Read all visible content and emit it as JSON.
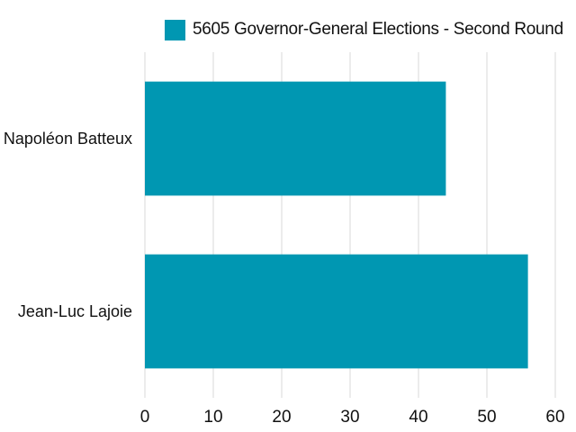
{
  "chart_data": {
    "type": "bar",
    "orientation": "horizontal",
    "categories": [
      "Napoléon Batteux",
      "Jean-Luc Lajoie"
    ],
    "series": [
      {
        "name": "5605 Governor-General Elections - Second Round",
        "values": [
          44,
          56
        ],
        "color": "#0097b2"
      }
    ],
    "xlim": [
      0,
      60
    ],
    "xticks": [
      "0",
      "10",
      "20",
      "30",
      "40",
      "50",
      "60"
    ],
    "grid": true,
    "legend_position": "top"
  }
}
